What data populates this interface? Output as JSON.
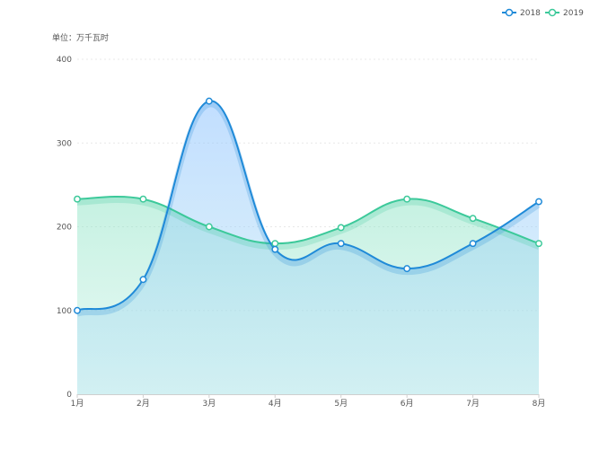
{
  "chart_data": {
    "type": "area",
    "unit_label": "单位：万千瓦时",
    "categories": [
      "1月",
      "2月",
      "3月",
      "4月",
      "5月",
      "6月",
      "7月",
      "8月"
    ],
    "y_ticks": [
      0,
      100,
      200,
      300,
      400
    ],
    "ylim": [
      0,
      400
    ],
    "grid": true,
    "legend_position": "top-right",
    "series": [
      {
        "name": "2018",
        "values": [
          100,
          137,
          350,
          173,
          180,
          150,
          180,
          230
        ],
        "color": "#1f8ad8",
        "fill": "#bcdcff"
      },
      {
        "name": "2019",
        "values": [
          233,
          233,
          200,
          180,
          199,
          233,
          210,
          180
        ],
        "color": "#3cc99a",
        "fill": "#cdf3e3"
      }
    ]
  }
}
